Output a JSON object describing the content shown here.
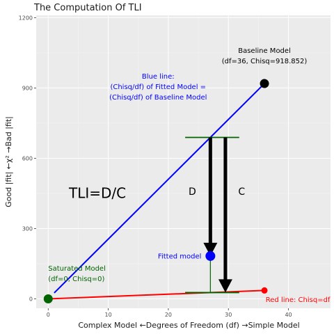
{
  "chart_data": {
    "type": "scatter",
    "title": "The Computation Of TLI",
    "xlabel": "Complex Model ←Degrees of Freedom (df) →Simple Model",
    "ylabel": "Good |fit| ←χ² →Bad |fit|",
    "xlim": [
      -2,
      47
    ],
    "ylim": [
      -40,
      1210
    ],
    "x_ticks": [
      0,
      10,
      20,
      30,
      40
    ],
    "y_ticks": [
      0,
      300,
      600,
      900,
      1200
    ],
    "grid": true,
    "points": [
      {
        "name": "baseline",
        "x": 36,
        "y": 918.852,
        "color": "#000000"
      },
      {
        "name": "fitted",
        "x": 27,
        "y": 183,
        "color": "#0000ff"
      },
      {
        "name": "saturated",
        "x": 0,
        "y": 0,
        "color": "#006400"
      },
      {
        "name": "red-end",
        "x": 36,
        "y": 36,
        "color": "#ff0000"
      }
    ],
    "lines": [
      {
        "name": "blue-line",
        "x": [
          1,
          36
        ],
        "y": [
          25.5,
          918.852
        ],
        "color": "#0000ff"
      },
      {
        "name": "red-line",
        "x": [
          0,
          36
        ],
        "y": [
          0,
          36
        ],
        "color": "#ff0000"
      },
      {
        "name": "fitted-drop",
        "x": [
          27,
          27
        ],
        "y": [
          689,
          27
        ],
        "color": "#006400"
      },
      {
        "name": "top-bar",
        "x": [
          22.8,
          31.8
        ],
        "y": [
          689,
          689
        ],
        "color": "#006400"
      },
      {
        "name": "bottom-bar",
        "x": [
          22.8,
          31.8
        ],
        "y": [
          27,
          27
        ],
        "color": "#006400"
      }
    ],
    "arrows": [
      {
        "name": "d-arrow",
        "x": 27,
        "y_from": 689,
        "y_to": 183
      },
      {
        "name": "c-arrow",
        "x": 29.5,
        "y_from": 689,
        "y_to": 27
      }
    ],
    "annotations": [
      {
        "name": "baseline-label",
        "lines": [
          "Baseline Model",
          "(df=36, Chisq=918.852)"
        ],
        "x": 36,
        "y": 1038,
        "color": "#000000",
        "size": 10,
        "anchor": "middle"
      },
      {
        "name": "blue-line-label",
        "lines": [
          "Blue line:",
          "(Chisq/df) of Fitted Model =",
          "(Chisq/df) of Baseline Model"
        ],
        "x": 18.3,
        "y": 905,
        "color": "#0000ff",
        "size": 10,
        "anchor": "middle"
      },
      {
        "name": "tli-label",
        "lines": [
          "TLI=D/C"
        ],
        "x": 8.2,
        "y": 452,
        "color": "#000000",
        "size": 20,
        "anchor": "middle"
      },
      {
        "name": "d-label",
        "lines": [
          "D"
        ],
        "x": 24,
        "y": 458,
        "color": "#000000",
        "size": 14,
        "anchor": "middle"
      },
      {
        "name": "c-label",
        "lines": [
          "C"
        ],
        "x": 32.2,
        "y": 458,
        "color": "#000000",
        "size": 14,
        "anchor": "middle"
      },
      {
        "name": "fitted-label",
        "lines": [
          "Fitted model"
        ],
        "x": 25.5,
        "y": 183,
        "color": "#0000ff",
        "size": 10,
        "anchor": "end"
      },
      {
        "name": "saturated-label",
        "lines": [
          "Saturated Model",
          "(df=0, Chisq=0)"
        ],
        "x": 0,
        "y": 108,
        "color": "#006400",
        "size": 10,
        "anchor": "start"
      },
      {
        "name": "red-line-label",
        "lines": [
          "Red line: Chisq=df"
        ],
        "x": 36.2,
        "y": -3,
        "color": "#ff0000",
        "size": 10,
        "anchor": "start"
      }
    ]
  }
}
